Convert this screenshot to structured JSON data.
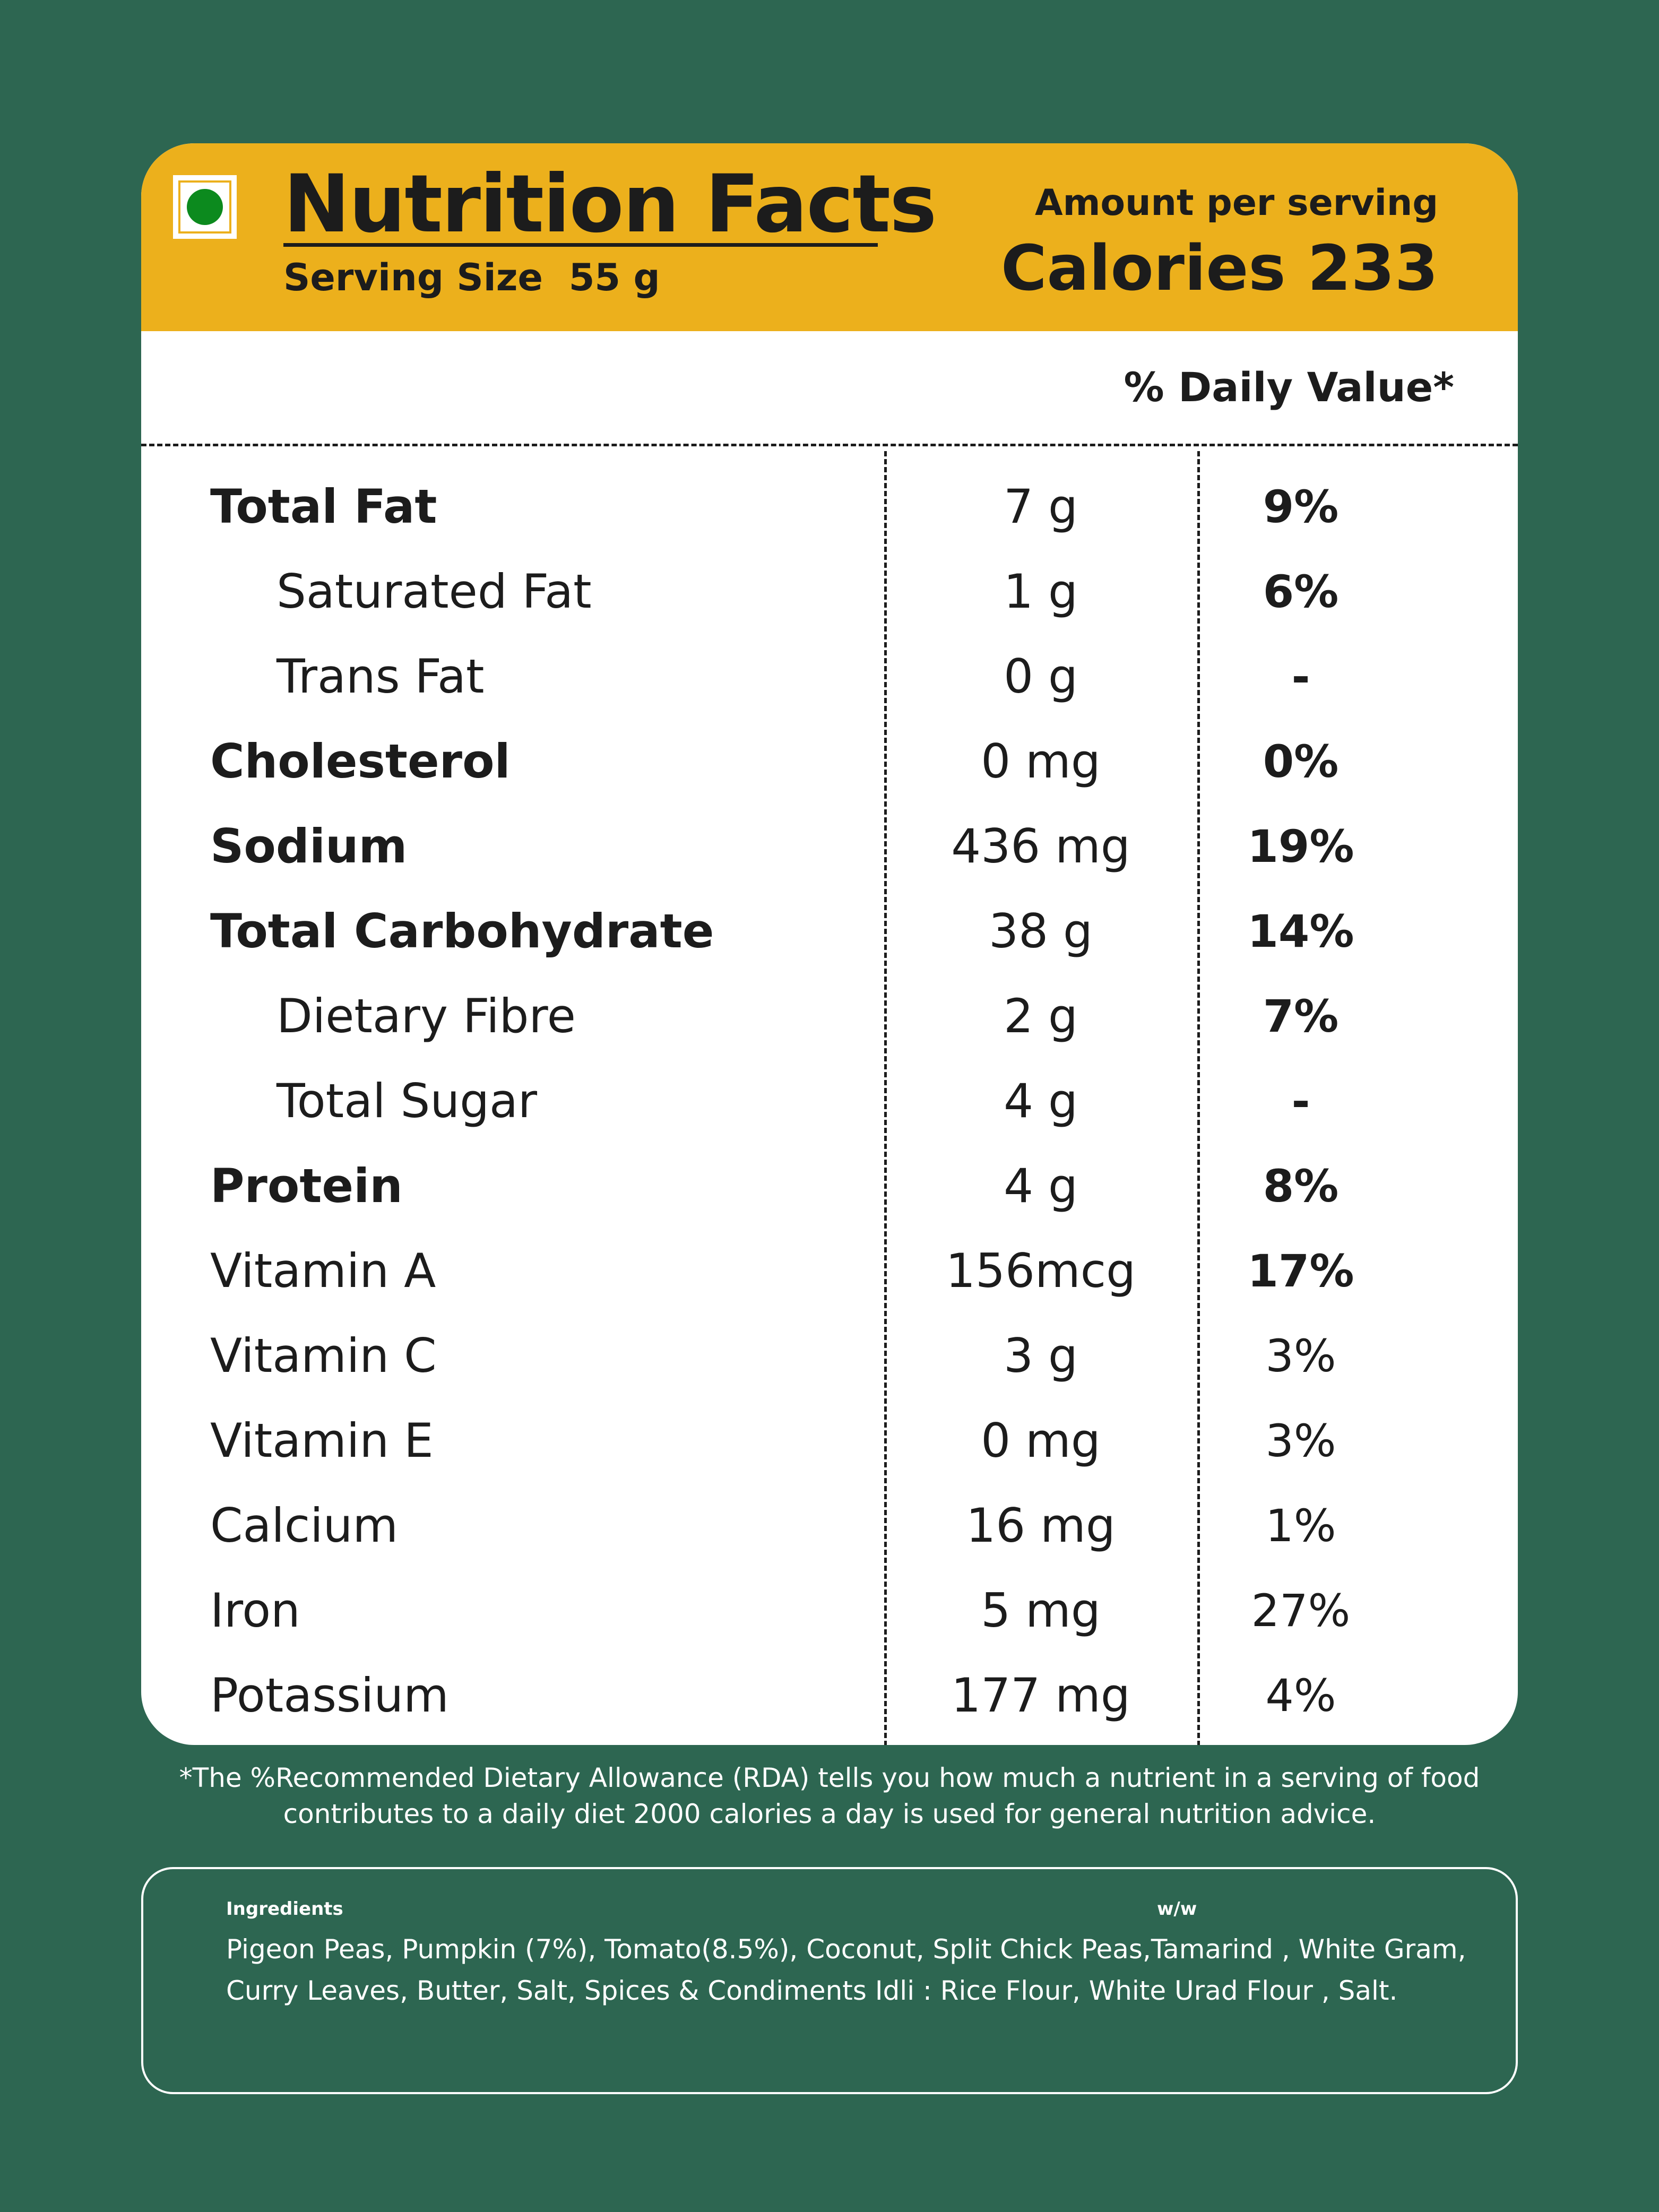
{
  "colors": {
    "background": "#2d6651",
    "header": "#ecb01c",
    "veg_mark": "#0c8a1e"
  },
  "header": {
    "title": "Nutrition Facts",
    "serving_size": "Serving Size  55 g",
    "amount_label": "Amount per serving",
    "calories": "Calories 233"
  },
  "table": {
    "dv_header": "% Daily Value*",
    "rows": [
      {
        "name": "Total Fat",
        "amount": "7 g",
        "dv": "9%"
      },
      {
        "name": "Saturated Fat",
        "amount": "1 g",
        "dv": "6%"
      },
      {
        "name": "Trans Fat",
        "amount": "0 g",
        "dv": "-"
      },
      {
        "name": "Cholesterol",
        "amount": "0 mg",
        "dv": "0%"
      },
      {
        "name": "Sodium",
        "amount": "436 mg",
        "dv": "19%"
      },
      {
        "name": "Total Carbohydrate",
        "amount": "38 g",
        "dv": "14%"
      },
      {
        "name": "Dietary Fibre",
        "amount": "2 g",
        "dv": "7%"
      },
      {
        "name": "Total Sugar",
        "amount": "4 g",
        "dv": "-"
      },
      {
        "name": "Protein",
        "amount": "4 g",
        "dv": "8%"
      },
      {
        "name": "Vitamin A",
        "amount": "156mcg",
        "dv": "17%"
      },
      {
        "name": "Vitamin C",
        "amount": "3 g",
        "dv": "3%"
      },
      {
        "name": "Vitamin E",
        "amount": "0 mg",
        "dv": "3%"
      },
      {
        "name": "Calcium",
        "amount": "16 mg",
        "dv": "1%"
      },
      {
        "name": "Iron",
        "amount": "5 mg",
        "dv": "27%"
      },
      {
        "name": "Potassium",
        "amount": "177 mg",
        "dv": "4%"
      }
    ]
  },
  "footnote": {
    "line1": "*The %Recommended Dietary Allowance (RDA) tells you how much a nutrient in a serving of food",
    "line2": "contributes to a daily diet 2000 calories a day is used for general nutrition advice."
  },
  "ingredients": {
    "title": "Ingredients",
    "ww": "w/w",
    "text": "Pigeon Peas, Pumpkin (7%), Tomato(8.5%), Coconut, Split Chick Peas,Tamarind , White Gram, Curry Leaves, Butter, Salt, Spices & Condiments Idli : Rice Flour, White Urad Flour , Salt."
  }
}
